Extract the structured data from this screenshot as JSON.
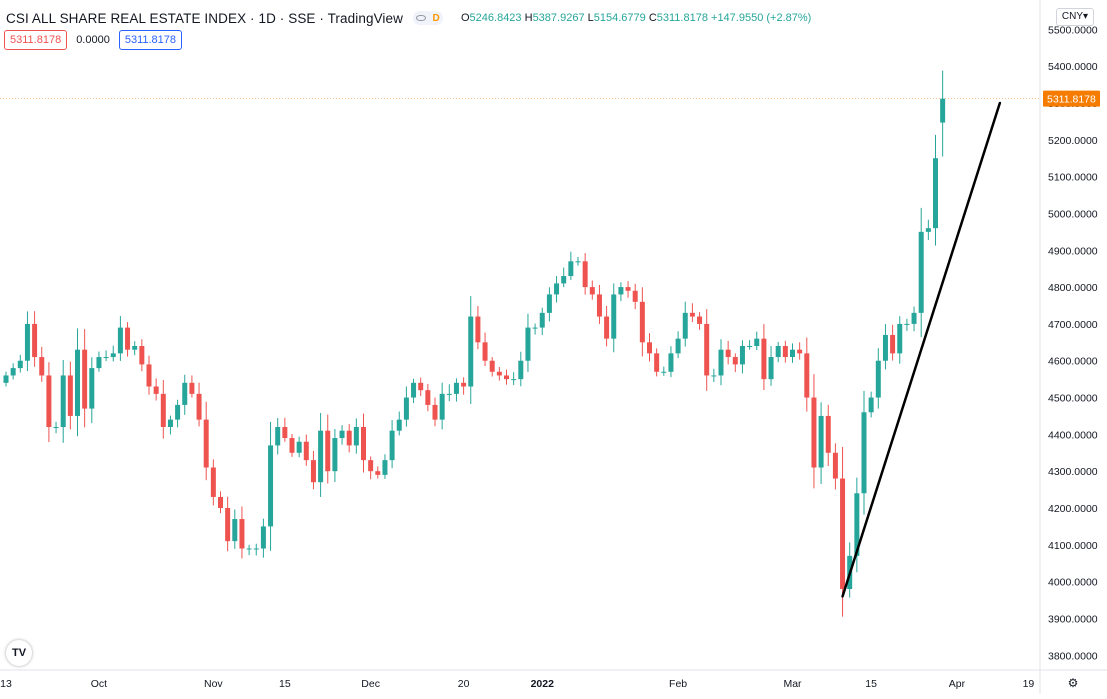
{
  "header": {
    "title": "CSI ALL SHARE REAL ESTATE INDEX · 1D · SSE · TradingView",
    "flag": "D",
    "ohlc": {
      "o_label": "O",
      "o": "5246.8423",
      "h_label": "H",
      "h": "5387.9267",
      "l_label": "L",
      "l": "5154.6779",
      "c_label": "C",
      "c": "5311.8178",
      "change": "+147.9550 (+2.87%)"
    }
  },
  "indicator_row": {
    "last": "5311.8178",
    "zero": "0.0000",
    "value": "5311.8178"
  },
  "currency": "CNY",
  "icons": {
    "logo": "tradingview-logo-icon",
    "settings": "settings-icon"
  },
  "colors": {
    "up": "#26a69a",
    "down": "#ef5350",
    "price_label": "#f57c00",
    "trendline": "#000000"
  },
  "chart_data": {
    "type": "candlestick",
    "title": "CSI ALL SHARE REAL ESTATE INDEX",
    "interval": "1D",
    "exchange": "SSE",
    "ylim": [
      3760,
      5520
    ],
    "yticks": [
      "5500.0000",
      "5400.0000",
      "5300.0000",
      "5200.0000",
      "5100.0000",
      "5000.0000",
      "4900.0000",
      "4800.0000",
      "4700.0000",
      "4600.0000",
      "4500.0000",
      "4400.0000",
      "4300.0000",
      "4200.0000",
      "4100.0000",
      "4000.0000",
      "3900.0000",
      "3800.0000"
    ],
    "xticks": [
      "13",
      "Oct",
      "Nov",
      "15",
      "Dec",
      "20",
      "2022",
      "Feb",
      "Mar",
      "15",
      "Apr",
      "19"
    ],
    "last_price_label": "5311.8178",
    "closes": [
      4560,
      4580,
      4600,
      4700,
      4610,
      4560,
      4420,
      4420,
      4560,
      4450,
      4630,
      4470,
      4580,
      4610,
      4610,
      4620,
      4690,
      4630,
      4640,
      4590,
      4530,
      4510,
      4420,
      4440,
      4480,
      4540,
      4510,
      4440,
      4310,
      4230,
      4200,
      4110,
      4170,
      4090,
      4090,
      4090,
      4150,
      4370,
      4420,
      4390,
      4350,
      4380,
      4330,
      4270,
      4410,
      4300,
      4390,
      4410,
      4370,
      4420,
      4330,
      4300,
      4290,
      4330,
      4410,
      4440,
      4500,
      4540,
      4520,
      4480,
      4440,
      4510,
      4510,
      4540,
      4530,
      4720,
      4650,
      4600,
      4570,
      4560,
      4550,
      4550,
      4600,
      4690,
      4690,
      4730,
      4780,
      4810,
      4830,
      4870,
      4870,
      4800,
      4780,
      4720,
      4660,
      4780,
      4800,
      4790,
      4760,
      4650,
      4620,
      4570,
      4570,
      4620,
      4660,
      4730,
      4720,
      4700,
      4560,
      4560,
      4630,
      4610,
      4590,
      4640,
      4640,
      4660,
      4550,
      4610,
      4640,
      4610,
      4630,
      4620,
      4500,
      4310,
      4450,
      4350,
      4280,
      3980,
      4070,
      4240,
      4460,
      4500,
      4600,
      4670,
      4620,
      4700,
      4700,
      4730,
      4950,
      4960,
      5150,
      5311.8178
    ],
    "trendline": {
      "from": {
        "index": 117,
        "value": 3960
      },
      "to": {
        "index": 139,
        "value": 5300
      }
    }
  }
}
